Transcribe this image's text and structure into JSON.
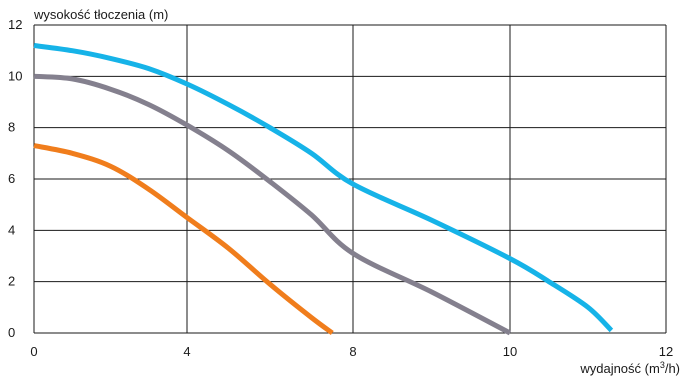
{
  "chart_data": {
    "type": "line",
    "title": "",
    "ylabel": "wysokość tłoczenia (m)",
    "xlabel_main": "wydajność (m",
    "xlabel_sup": "3",
    "xlabel_tail": "/h)",
    "x_ticks": [
      0,
      4,
      8,
      10,
      12
    ],
    "y_ticks": [
      0,
      2,
      4,
      6,
      8,
      10,
      12
    ],
    "x_tick_labels": [
      "0",
      "4",
      "8",
      "10",
      "12"
    ],
    "y_tick_labels": [
      "0",
      "2",
      "4",
      "6",
      "8",
      "10",
      "12"
    ],
    "xlim": [
      0,
      12
    ],
    "ylim": [
      0,
      12
    ],
    "grid": true,
    "legend": "none",
    "series": [
      {
        "color": "#16b3e8",
        "x": [
          0,
          1,
          2,
          3,
          4,
          5,
          6,
          7,
          8,
          9,
          10,
          10.5,
          11,
          11.3
        ],
        "y": [
          11.2,
          11.0,
          10.7,
          10.3,
          9.7,
          8.9,
          8.0,
          7.0,
          5.8,
          4.4,
          2.9,
          2.0,
          1.0,
          0.1
        ]
      },
      {
        "color": "#84808e",
        "x": [
          0,
          1,
          2,
          3,
          4,
          5,
          6,
          7,
          8,
          9,
          10
        ],
        "y": [
          10.0,
          9.9,
          9.5,
          8.9,
          8.1,
          7.1,
          5.9,
          4.6,
          3.1,
          1.6,
          0.0
        ]
      },
      {
        "color": "#f07d1c",
        "x": [
          0,
          1,
          2,
          3,
          4,
          5,
          6,
          7,
          7.5
        ],
        "y": [
          7.3,
          7.0,
          6.5,
          5.6,
          4.5,
          3.3,
          1.9,
          0.6,
          0.0
        ]
      }
    ]
  }
}
